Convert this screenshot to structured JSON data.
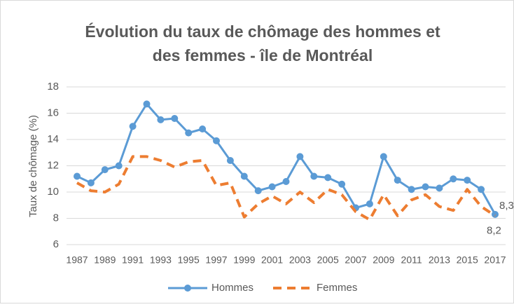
{
  "chart_data": {
    "type": "line",
    "title": [
      "Évolution du taux de chômage des hommes et",
      "des femmes - île de Montréal"
    ],
    "y_label": "Taux de chômage (%)",
    "categories": [
      "1987",
      null,
      "1989",
      null,
      "1991",
      null,
      "1993",
      null,
      "1995",
      null,
      "1997",
      null,
      "1999",
      null,
      "2001",
      null,
      "2003",
      null,
      "2005",
      null,
      "2007",
      null,
      "2009",
      null,
      "2011",
      null,
      "2013",
      null,
      "2015",
      null,
      "2017"
    ],
    "series": [
      {
        "name": "Hommes",
        "color": "#5b9bd5",
        "dashed": false,
        "markers": true,
        "values": [
          11.2,
          10.7,
          11.7,
          12.0,
          15.0,
          16.7,
          15.5,
          15.6,
          14.5,
          14.8,
          13.9,
          12.4,
          11.2,
          10.1,
          10.4,
          10.8,
          12.7,
          11.2,
          11.1,
          10.6,
          8.8,
          9.1,
          12.7,
          10.9,
          10.2,
          10.4,
          10.3,
          11.0,
          10.9,
          10.2,
          8.3
        ],
        "value_labels": [
          null,
          null,
          null,
          null,
          null,
          null,
          null,
          null,
          null,
          null,
          null,
          null,
          null,
          null,
          null,
          null,
          null,
          null,
          null,
          null,
          null,
          null,
          null,
          null,
          null,
          null,
          null,
          null,
          null,
          null,
          "8,3"
        ]
      },
      {
        "name": "Femmes",
        "color": "#ed7d31",
        "dashed": true,
        "markers": false,
        "values": [
          10.7,
          10.1,
          10.0,
          10.6,
          12.7,
          12.7,
          12.4,
          11.9,
          12.3,
          12.4,
          10.5,
          10.7,
          8.1,
          9.1,
          9.7,
          9.1,
          10.0,
          9.2,
          10.2,
          9.8,
          8.5,
          7.9,
          9.8,
          8.2,
          9.4,
          9.8,
          8.9,
          8.6,
          10.2,
          8.9,
          8.2
        ],
        "value_labels": [
          null,
          null,
          null,
          null,
          null,
          null,
          null,
          null,
          null,
          null,
          null,
          null,
          null,
          null,
          null,
          null,
          null,
          null,
          null,
          null,
          null,
          null,
          null,
          null,
          null,
          null,
          null,
          null,
          null,
          null,
          "8,2"
        ]
      }
    ],
    "ylim": [
      6,
      18
    ],
    "yticks": [
      6,
      8,
      10,
      12,
      14,
      16,
      18
    ],
    "grid": true,
    "legend": "bottom"
  }
}
